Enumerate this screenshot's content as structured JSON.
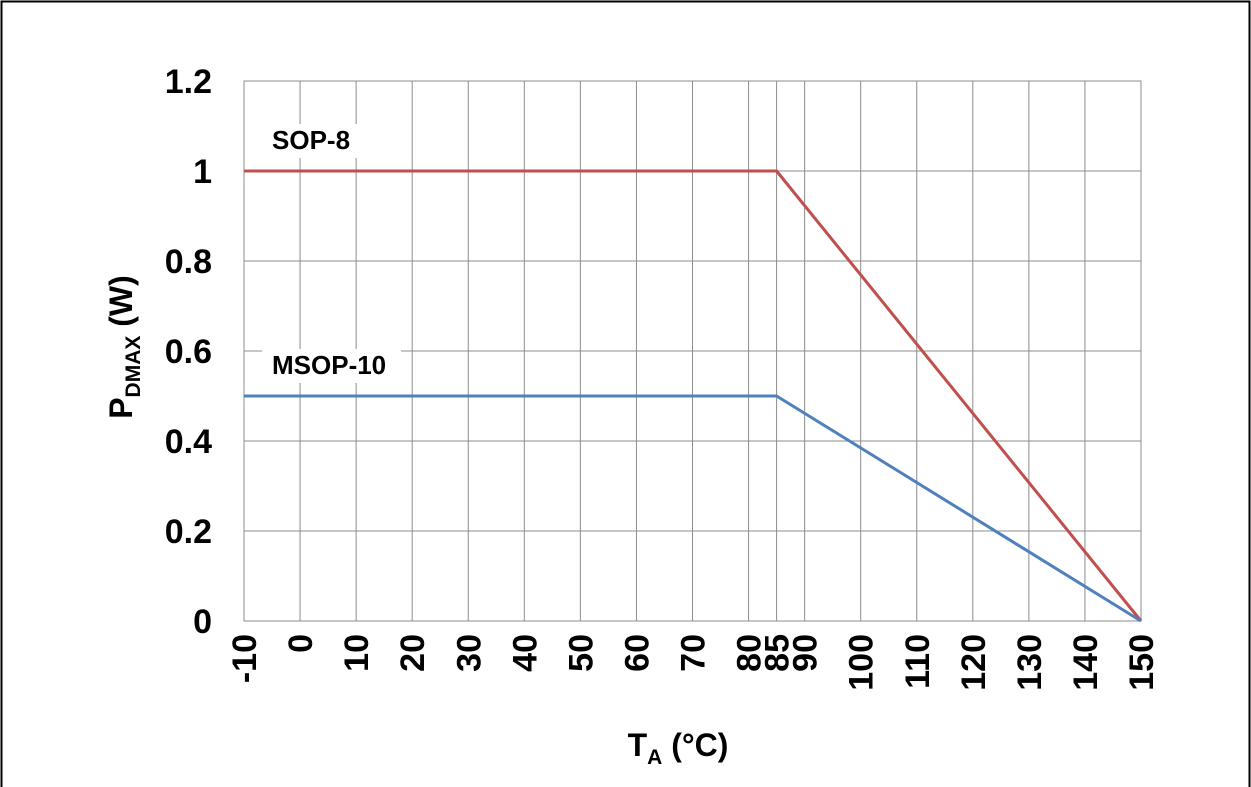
{
  "chart_data": {
    "type": "line",
    "title": "",
    "xlabel": {
      "main": "T",
      "sub": "A",
      "suffix": " (°C)"
    },
    "ylabel": {
      "main": "P",
      "sub": "DMAX",
      "suffix": " (W)"
    },
    "xlim": [
      -10,
      150
    ],
    "ylim": [
      0,
      1.2
    ],
    "xticks": [
      "-10",
      "0",
      "10",
      "20",
      "30",
      "40",
      "50",
      "60",
      "70",
      "80",
      "85",
      "90",
      "100",
      "110",
      "120",
      "130",
      "140",
      "150"
    ],
    "xtick_values": [
      -10,
      0,
      10,
      20,
      30,
      40,
      50,
      60,
      70,
      80,
      85,
      90,
      100,
      110,
      120,
      130,
      140,
      150
    ],
    "yticks": [
      "0",
      "0.2",
      "0.4",
      "0.6",
      "0.8",
      "1",
      "1.2"
    ],
    "ytick_values": [
      0,
      0.2,
      0.4,
      0.6,
      0.8,
      1.0,
      1.2
    ],
    "grid": true,
    "legend": "none",
    "series": [
      {
        "name": "SOP-8",
        "color": "#c0504d",
        "x": [
          -10,
          85,
          150
        ],
        "y": [
          1.0,
          1.0,
          0
        ]
      },
      {
        "name": "MSOP-10",
        "color": "#4f81bd",
        "x": [
          -10,
          85,
          150
        ],
        "y": [
          0.5,
          0.5,
          0
        ]
      }
    ]
  }
}
